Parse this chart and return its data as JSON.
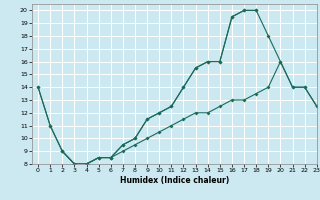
{
  "title": "",
  "xlabel": "Humidex (Indice chaleur)",
  "bg_color": "#cce8f0",
  "line_color": "#1a6b5a",
  "grid_color": "#ffffff",
  "xlim": [
    -0.5,
    23
  ],
  "ylim": [
    8,
    20.5
  ],
  "xticks": [
    0,
    1,
    2,
    3,
    4,
    5,
    6,
    7,
    8,
    9,
    10,
    11,
    12,
    13,
    14,
    15,
    16,
    17,
    18,
    19,
    20,
    21,
    22,
    23
  ],
  "yticks": [
    8,
    9,
    10,
    11,
    12,
    13,
    14,
    15,
    16,
    17,
    18,
    19,
    20
  ],
  "line1_x": [
    0,
    1,
    2,
    3,
    4,
    5,
    6,
    7,
    8,
    9,
    10,
    11,
    12,
    13,
    14,
    15,
    16,
    17,
    18
  ],
  "line1_y": [
    14,
    11,
    9,
    8,
    8,
    8.5,
    8.5,
    9.5,
    10,
    11.5,
    12,
    12.5,
    14,
    15.5,
    16,
    16,
    19.5,
    20,
    20
  ],
  "line2_x": [
    0,
    1,
    2,
    3,
    4,
    5,
    6,
    7,
    8,
    9,
    10,
    11,
    12,
    13,
    14,
    15,
    16,
    17,
    18,
    19,
    20,
    21,
    22,
    23
  ],
  "line2_y": [
    14,
    11,
    9,
    8,
    8,
    8.5,
    8.5,
    9.5,
    10,
    11.5,
    12,
    12.5,
    14,
    15.5,
    16,
    16,
    19.5,
    20,
    20,
    18,
    16,
    14,
    14,
    12.5
  ],
  "line3_x": [
    2,
    3,
    4,
    5,
    6,
    7,
    8,
    9,
    10,
    11,
    12,
    13,
    14,
    15,
    16,
    17,
    18,
    19,
    20,
    21,
    22,
    23
  ],
  "line3_y": [
    9,
    8,
    8,
    8.5,
    8.5,
    9,
    9.5,
    10,
    10.5,
    11,
    11.5,
    12,
    12,
    12.5,
    13,
    13,
    13.5,
    14,
    16,
    14,
    14,
    12.5
  ]
}
